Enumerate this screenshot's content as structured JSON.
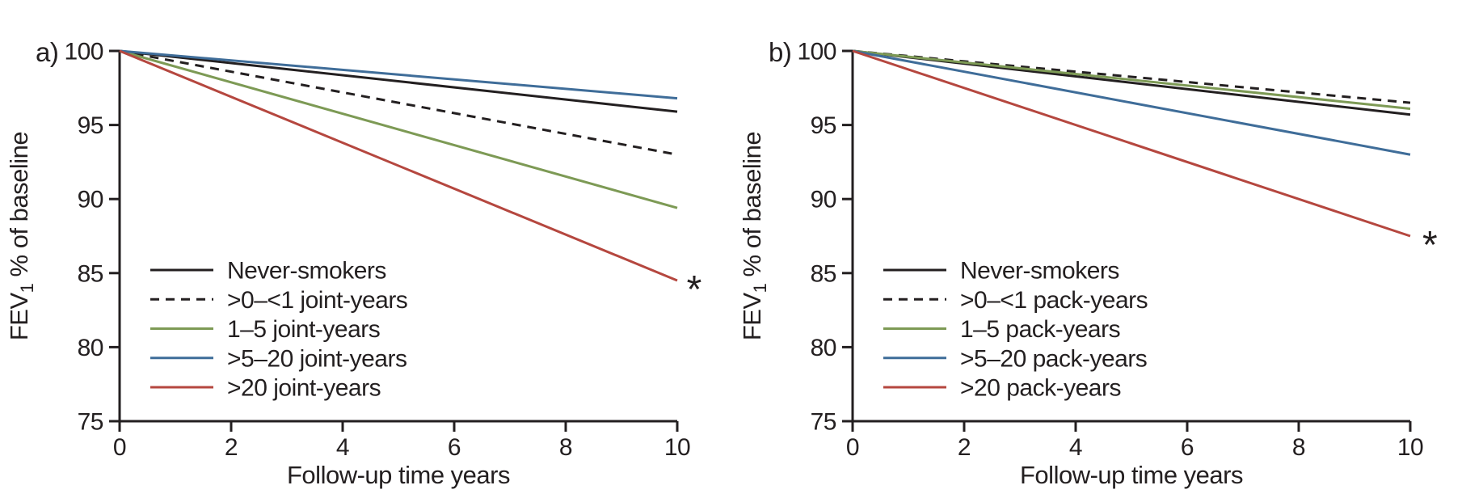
{
  "figure": {
    "background": "#ffffff",
    "text_color": "#231f20",
    "axis_color": "#231f20"
  },
  "chart_data": [
    {
      "type": "line",
      "panel": "a",
      "panel_label": "a)",
      "xlabel": "Follow-up time years",
      "ylabel": {
        "pre": "FEV",
        "sub": "1",
        "post": " % of baseline"
      },
      "xlim": [
        0,
        10
      ],
      "ylim": [
        75,
        100
      ],
      "xticks": [
        "0",
        "2",
        "4",
        "6",
        "8",
        "10"
      ],
      "yticks": [
        "100",
        "95",
        "90",
        "85",
        "80",
        "75"
      ],
      "grid": false,
      "legend_position": "lower-left-inside",
      "x": [
        0,
        10
      ],
      "series": [
        {
          "name": "Never-smokers",
          "style": "solid",
          "color": "#231f20",
          "values": [
            100,
            95.9
          ]
        },
        {
          "name": ">0–<1 joint-years",
          "style": "dashed",
          "color": "#231f20",
          "values": [
            100,
            93.0
          ]
        },
        {
          "name": "1–5 joint-years",
          "style": "solid",
          "color": "#7d9a55",
          "values": [
            100,
            89.4
          ]
        },
        {
          "name": ">5–20 joint-years",
          "style": "solid",
          "color": "#3f6d99",
          "values": [
            100,
            96.8
          ]
        },
        {
          "name": ">20 joint-years",
          "style": "solid",
          "color": "#b5473f",
          "values": [
            100,
            84.5
          ]
        }
      ],
      "annotation": {
        "text": "*",
        "x": 10.3,
        "y": 84.2
      }
    },
    {
      "type": "line",
      "panel": "b",
      "panel_label": "b)",
      "xlabel": "Follow-up time years",
      "ylabel": {
        "pre": "FEV",
        "sub": "1",
        "post": " % of baseline"
      },
      "xlim": [
        0,
        10
      ],
      "ylim": [
        75,
        100
      ],
      "xticks": [
        "0",
        "2",
        "4",
        "6",
        "8",
        "10"
      ],
      "yticks": [
        "100",
        "95",
        "90",
        "85",
        "80",
        "75"
      ],
      "grid": false,
      "legend_position": "lower-left-inside",
      "x": [
        0,
        10
      ],
      "series": [
        {
          "name": "Never-smokers",
          "style": "solid",
          "color": "#231f20",
          "values": [
            100,
            95.7
          ]
        },
        {
          "name": ">0–<1 pack-years",
          "style": "dashed",
          "color": "#231f20",
          "values": [
            100,
            96.5
          ]
        },
        {
          "name": "1–5 pack-years",
          "style": "solid",
          "color": "#7d9a55",
          "values": [
            100,
            96.1
          ]
        },
        {
          "name": ">5–20 pack-years",
          "style": "solid",
          "color": "#3f6d99",
          "values": [
            100,
            93.0
          ]
        },
        {
          "name": ">20 pack-years",
          "style": "solid",
          "color": "#b5473f",
          "values": [
            100,
            87.5
          ]
        }
      ],
      "annotation": {
        "text": "*",
        "x": 10.35,
        "y": 87.2
      }
    }
  ]
}
